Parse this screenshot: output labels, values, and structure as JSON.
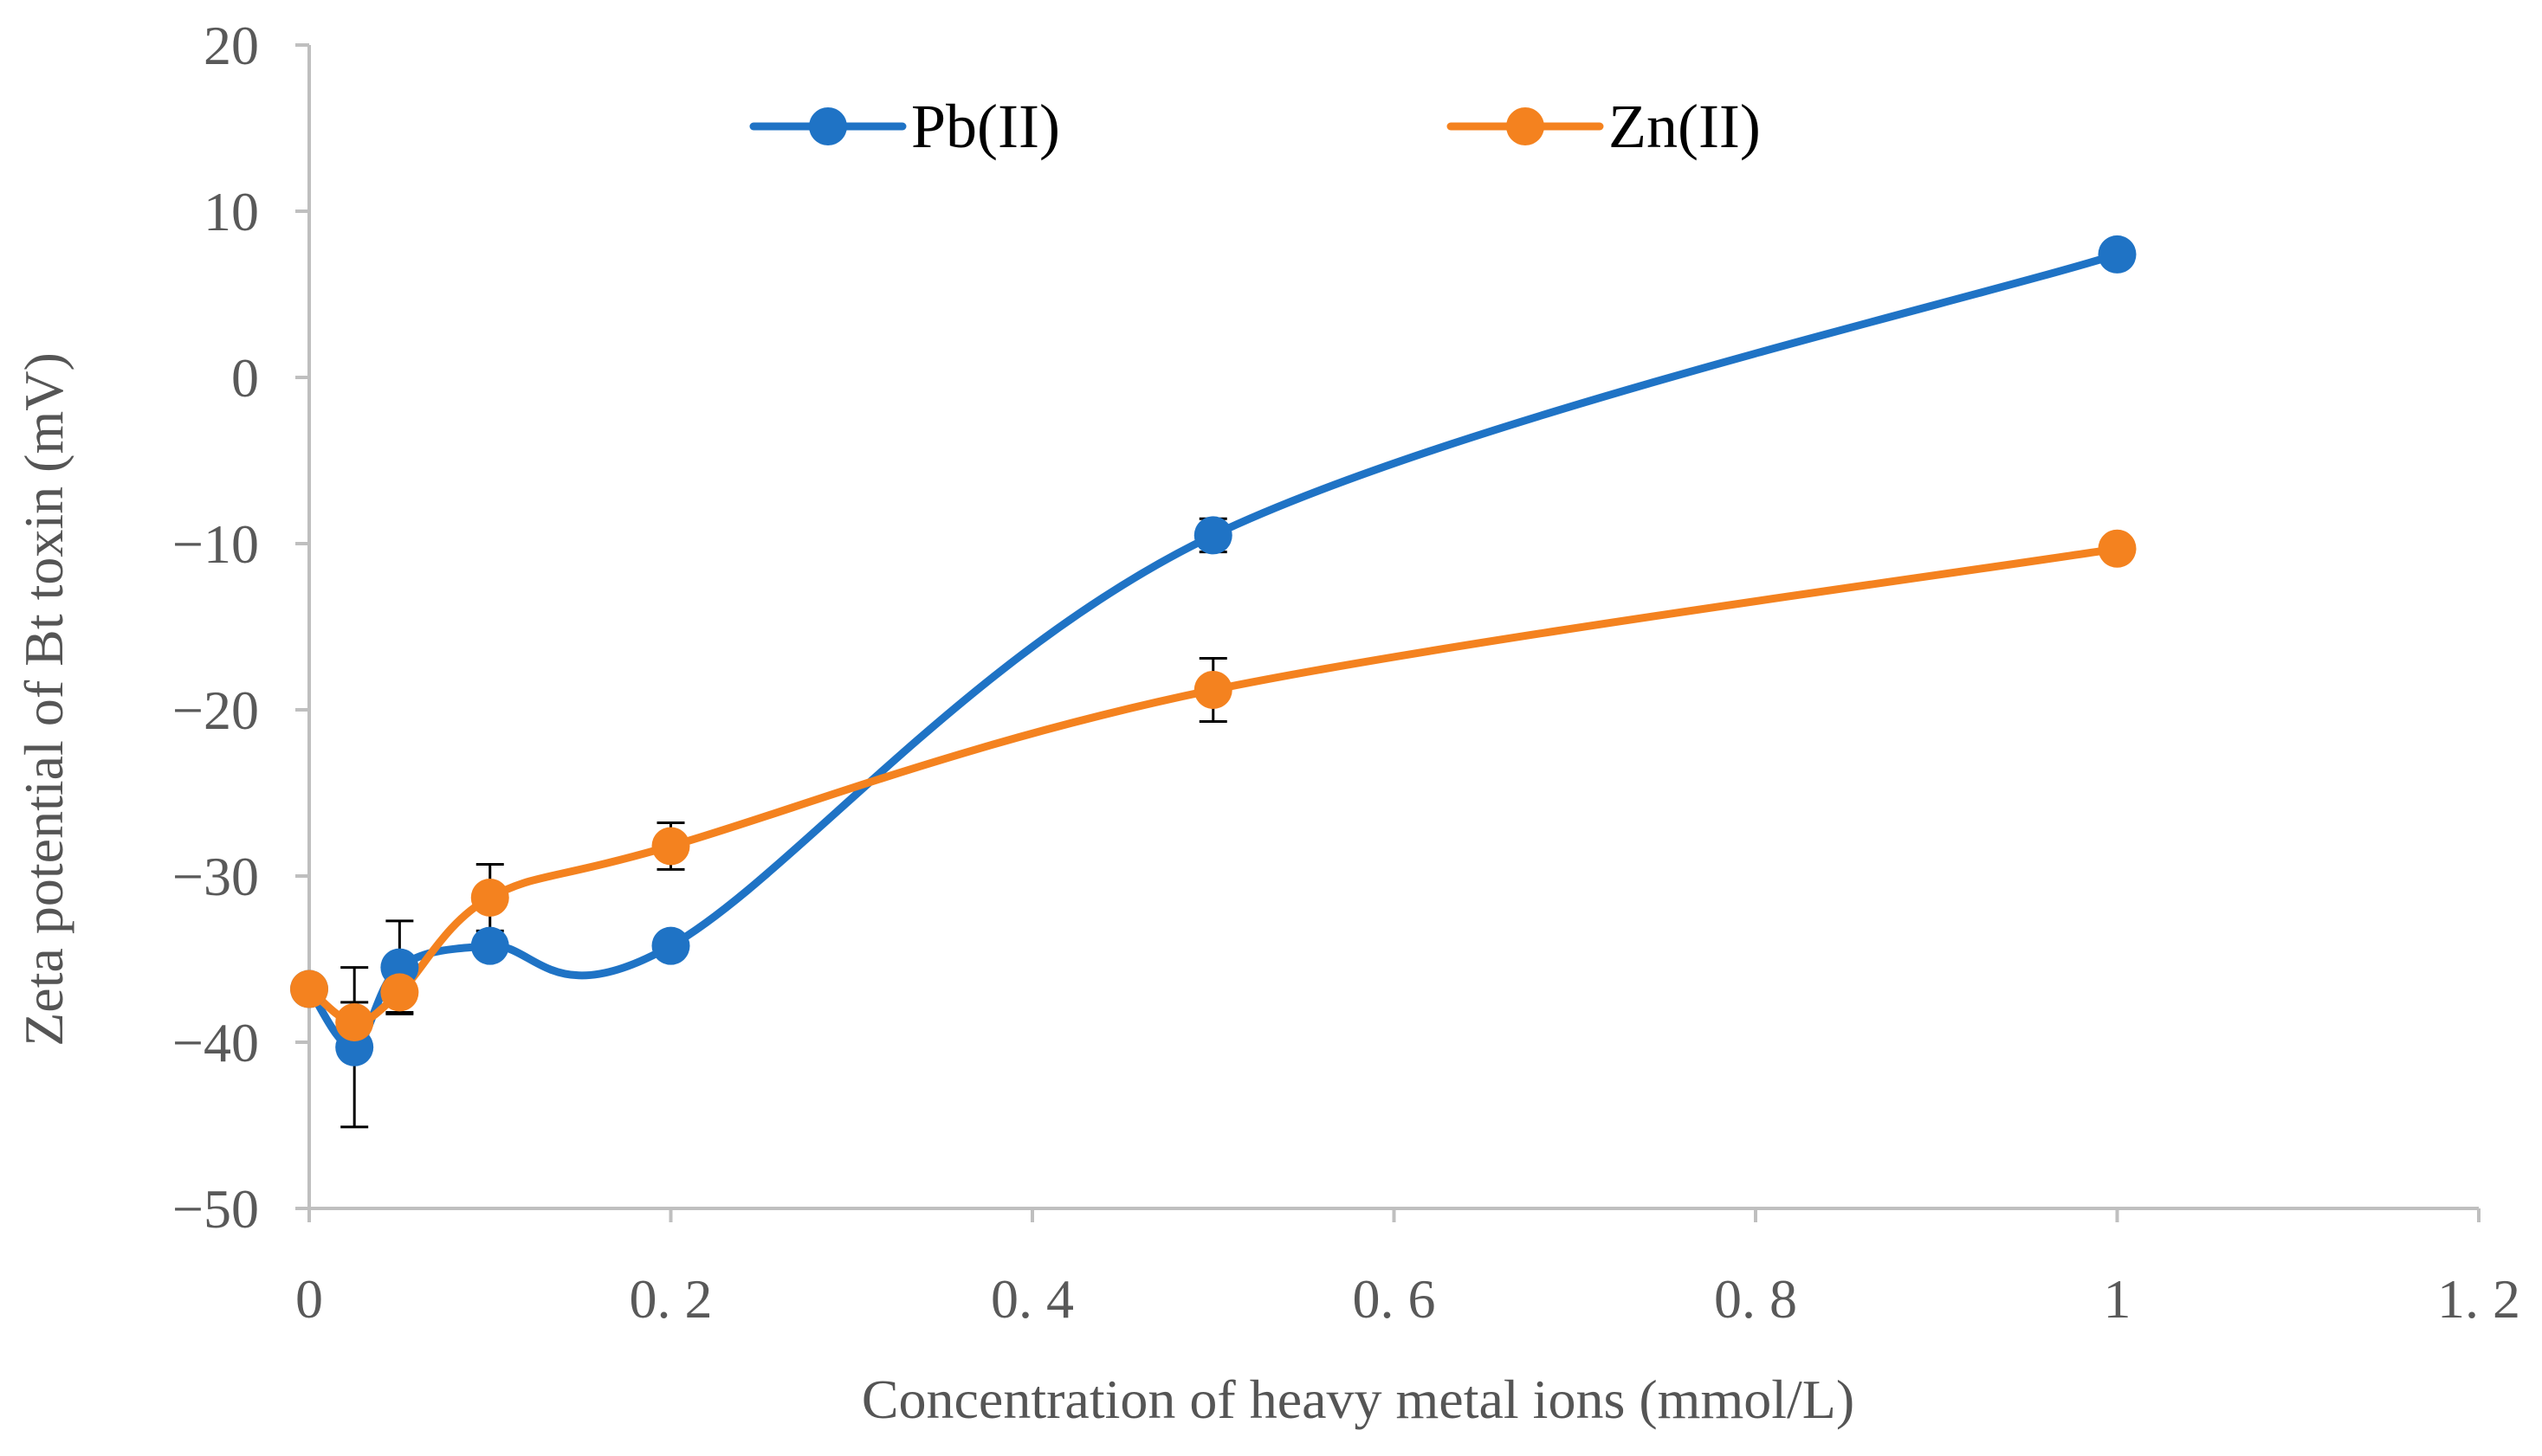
{
  "chart_data": {
    "type": "line",
    "title": "",
    "xlabel": "Concentration of heavy metal ions (mmol/L)",
    "ylabel": "Zeta potential of Bt toxin (mV)",
    "xlim": [
      0,
      1.2
    ],
    "ylim": [
      -50,
      20
    ],
    "x_ticks": [
      0,
      0.2,
      0.4,
      0.6,
      0.8,
      1,
      1.2
    ],
    "x_tick_labels": [
      "0",
      "0. 2",
      "0. 4",
      "0. 6",
      "0. 8",
      "1",
      "1. 2"
    ],
    "y_ticks": [
      20,
      10,
      0,
      -10,
      -20,
      -30,
      -40,
      -50
    ],
    "y_tick_labels": [
      "20",
      "10",
      "0",
      "−10",
      "−20",
      "−30",
      "−40",
      "−50"
    ],
    "grid": false,
    "legend_position": "top",
    "smooth": true,
    "series": [
      {
        "name": "Pb(II)",
        "color": "#1f73c5",
        "x": [
          0,
          0.025,
          0.05,
          0.1,
          0.2,
          0.5,
          1
        ],
        "y": [
          -36.8,
          -40.3,
          -35.5,
          -34.2,
          -34.2,
          -9.5,
          7.4
        ],
        "error": [
          0,
          4.8,
          2.8,
          0,
          0,
          1.0,
          0
        ]
      },
      {
        "name": "Zn(II)",
        "color": "#f4821f",
        "x": [
          0,
          0.025,
          0.05,
          0.1,
          0.2,
          0.5,
          1
        ],
        "y": [
          -36.8,
          -38.8,
          -37.0,
          -31.3,
          -28.2,
          -18.8,
          -10.3
        ],
        "error": [
          0,
          1.2,
          1.2,
          2.0,
          1.4,
          1.9,
          0
        ]
      }
    ]
  }
}
